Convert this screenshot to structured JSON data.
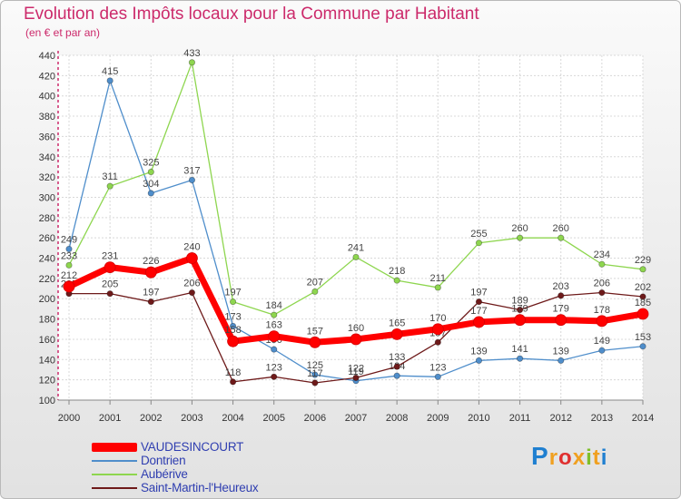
{
  "chart_data": {
    "type": "line",
    "title": "Evolution des Impôts locaux pour la Commune par Habitant",
    "subtitle": "(en € et par an)",
    "xlabel": "",
    "ylabel": "",
    "ylim": [
      100,
      440
    ],
    "y_ticks": [
      100,
      120,
      140,
      160,
      180,
      200,
      220,
      240,
      260,
      280,
      300,
      320,
      340,
      360,
      380,
      400,
      420,
      440
    ],
    "grid": true,
    "categories": [
      "2000",
      "2001",
      "2002",
      "2003",
      "2004",
      "2005",
      "2006",
      "2007",
      "2008",
      "2009",
      "2010",
      "2011",
      "2012",
      "2013",
      "2014"
    ],
    "series": [
      {
        "name": "Dontrien",
        "color": "#4f8ecb",
        "values": [
          249,
          415,
          304,
          317,
          173,
          150,
          125,
          119,
          124,
          123,
          139,
          141,
          139,
          149,
          153
        ]
      },
      {
        "name": "Aubérive",
        "color": "#8ed64f",
        "values": [
          233,
          311,
          325,
          433,
          197,
          184,
          207,
          241,
          218,
          211,
          255,
          260,
          260,
          234,
          229
        ]
      },
      {
        "name": "Saint-Martin-l'Heureux",
        "color": "#6e1a1a",
        "values": [
          205,
          205,
          197,
          206,
          118,
          123,
          117,
          122,
          133,
          157,
          197,
          189,
          203,
          206,
          202
        ]
      },
      {
        "name": "VAUDESINCOURT",
        "color": "#ff0000",
        "values": [
          212,
          231,
          226,
          240,
          158,
          163,
          157,
          160,
          165,
          170,
          177,
          179,
          179,
          178,
          185
        ]
      }
    ]
  },
  "brand": {
    "letters": [
      "P",
      "r",
      "o",
      "x",
      "i",
      "t",
      "i"
    ],
    "colors": [
      "#1f7fd0",
      "#f0a020",
      "#e03030",
      "#f0a020",
      "#7fbf2a",
      "#f0a020",
      "#1f7fd0"
    ]
  }
}
